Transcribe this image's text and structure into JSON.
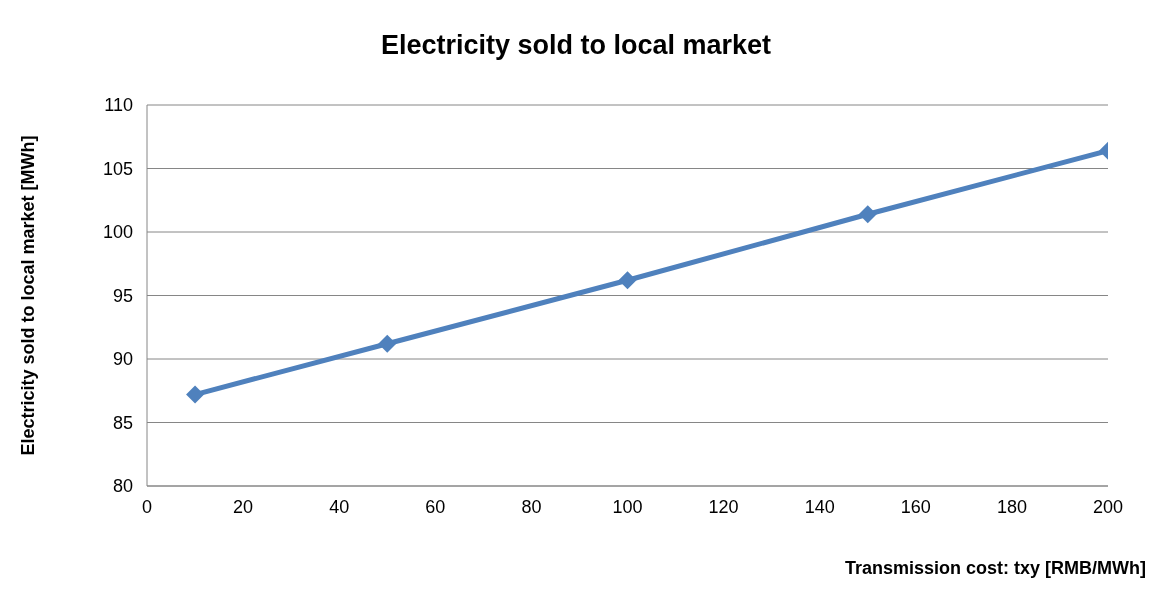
{
  "chart_data": {
    "type": "line",
    "title": "Electricity sold to local market",
    "xlabel": "Transmission cost: txy [RMB/MWh]",
    "ylabel": "Electricity sold to local market [MWh]",
    "x": [
      10,
      50,
      100,
      150,
      200
    ],
    "series": [
      {
        "color": "#4f81bd",
        "values": [
          87.2,
          91.2,
          96.2,
          101.4,
          106.4
        ]
      }
    ],
    "xlim": [
      0,
      200
    ],
    "xticks": [
      0,
      20,
      40,
      60,
      80,
      100,
      120,
      140,
      160,
      180,
      200
    ],
    "ylim": [
      80,
      110
    ],
    "yticks": [
      80,
      85,
      90,
      95,
      100,
      105,
      110
    ],
    "grid": "y",
    "legend": false,
    "marker": "diamond",
    "line_style": "solid"
  }
}
